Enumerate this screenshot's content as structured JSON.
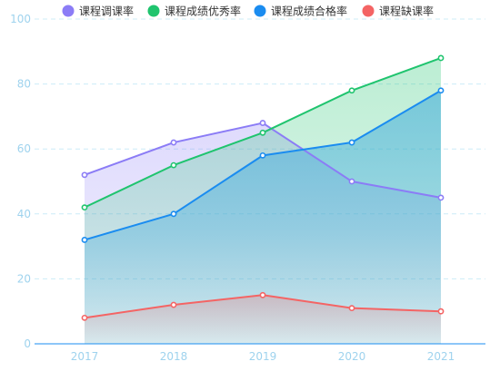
{
  "chart_data": {
    "type": "area",
    "categories": [
      "2017",
      "2018",
      "2019",
      "2020",
      "2021"
    ],
    "series": [
      {
        "name": "课程调课率",
        "values": [
          52,
          62,
          68,
          50,
          45
        ],
        "color": "#8b7cf6"
      },
      {
        "name": "课程成绩优秀率",
        "values": [
          42,
          55,
          65,
          78,
          88
        ],
        "color": "#1fc46e"
      },
      {
        "name": "课程成绩合格率",
        "values": [
          32,
          40,
          58,
          62,
          78
        ],
        "color": "#1a8cf0"
      },
      {
        "name": "课程缺课率",
        "values": [
          8,
          12,
          15,
          11,
          10
        ],
        "color": "#f46464"
      }
    ],
    "ylim": [
      0,
      100
    ],
    "yticks": [
      "0",
      "20",
      "40",
      "60",
      "80",
      "100"
    ],
    "grid": true,
    "legend_position": "top",
    "title": "",
    "xlabel": "",
    "ylabel": ""
  }
}
